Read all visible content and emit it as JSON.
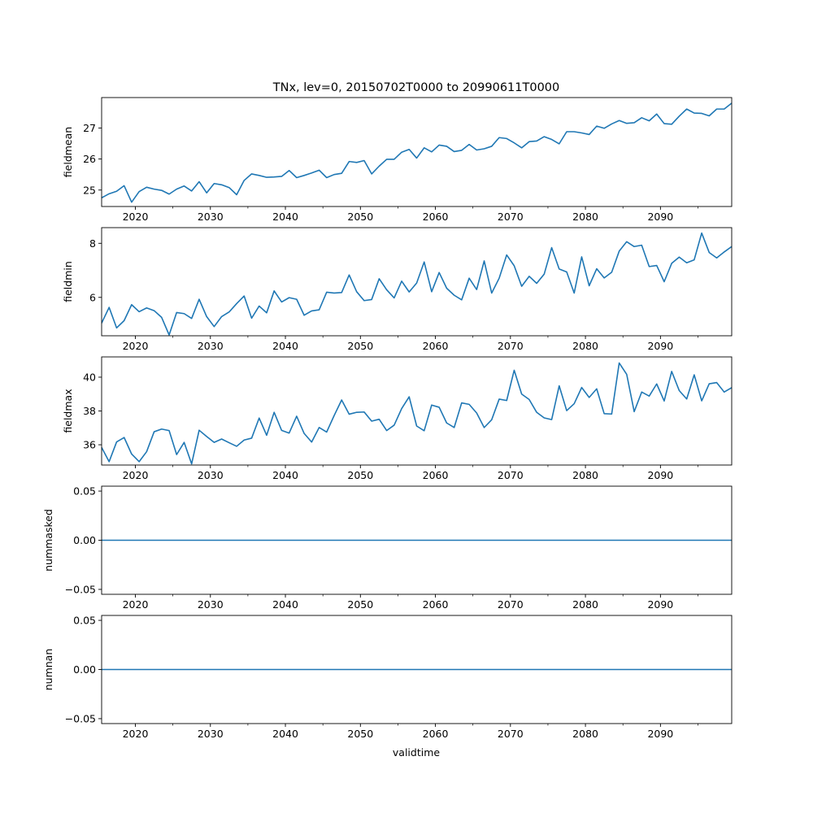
{
  "chart_data": {
    "title": "TNx, lev=0, 20150702T0000 to 20990611T0000",
    "xlabel": "validtime",
    "line_color": "#1f77b4",
    "x_start": 2015.5,
    "x_step": 1,
    "xlim": [
      2015.5,
      2099.5
    ],
    "x_ticks": [
      2020,
      2030,
      2040,
      2050,
      2060,
      2070,
      2080,
      2090
    ],
    "x_tick_labels": [
      "2020",
      "2030",
      "2040",
      "2050",
      "2060",
      "2070",
      "2080",
      "2090"
    ],
    "panels": [
      {
        "type": "line",
        "ylabel": "fieldmean",
        "ylim": [
          24.47,
          27.98
        ],
        "y_ticks": [
          25,
          26,
          27
        ],
        "y_tick_labels": [
          "25",
          "26",
          "27"
        ],
        "values": [
          24.75,
          24.88,
          24.96,
          25.14,
          24.61,
          24.95,
          25.09,
          25.03,
          24.99,
          24.87,
          25.03,
          25.13,
          24.97,
          25.27,
          24.91,
          25.21,
          25.17,
          25.08,
          24.85,
          25.31,
          25.52,
          25.47,
          25.41,
          25.42,
          25.44,
          25.63,
          25.4,
          25.47,
          25.55,
          25.64,
          25.4,
          25.5,
          25.54,
          25.92,
          25.89,
          25.95,
          25.52,
          25.77,
          25.99,
          25.99,
          26.22,
          26.31,
          26.03,
          26.36,
          26.23,
          26.45,
          26.41,
          26.24,
          26.28,
          26.47,
          26.29,
          26.33,
          26.41,
          26.69,
          26.66,
          26.52,
          26.36,
          26.56,
          26.58,
          26.72,
          26.63,
          26.49,
          26.88,
          26.88,
          26.84,
          26.79,
          27.06,
          26.99,
          27.13,
          27.24,
          27.15,
          27.17,
          27.33,
          27.23,
          27.45,
          27.14,
          27.12,
          27.38,
          27.61,
          27.48,
          27.47,
          27.39,
          27.61,
          27.61,
          27.8
        ]
      },
      {
        "type": "line",
        "ylabel": "fieldmin",
        "ylim": [
          4.58,
          8.58
        ],
        "y_ticks": [
          6,
          8
        ],
        "y_tick_labels": [
          "6",
          "8"
        ],
        "values": [
          5.05,
          5.63,
          4.87,
          5.14,
          5.73,
          5.47,
          5.61,
          5.51,
          5.26,
          4.61,
          5.44,
          5.4,
          5.22,
          5.93,
          5.29,
          4.92,
          5.29,
          5.46,
          5.77,
          6.05,
          5.23,
          5.68,
          5.43,
          6.24,
          5.83,
          5.99,
          5.93,
          5.34,
          5.5,
          5.54,
          6.19,
          6.16,
          6.18,
          6.83,
          6.21,
          5.88,
          5.92,
          6.69,
          6.28,
          5.98,
          6.6,
          6.2,
          6.53,
          7.31,
          6.21,
          6.92,
          6.34,
          6.08,
          5.91,
          6.71,
          6.29,
          7.35,
          6.16,
          6.71,
          7.57,
          7.17,
          6.41,
          6.78,
          6.52,
          6.86,
          7.84,
          7.05,
          6.94,
          6.16,
          7.5,
          6.43,
          7.06,
          6.72,
          6.93,
          7.71,
          8.06,
          7.88,
          7.93,
          7.14,
          7.18,
          6.58,
          7.26,
          7.49,
          7.28,
          7.39,
          8.38,
          7.66,
          7.46,
          7.68,
          7.88
        ]
      },
      {
        "type": "line",
        "ylabel": "fieldmax",
        "ylim": [
          34.8,
          41.2
        ],
        "y_ticks": [
          36,
          38,
          40
        ],
        "y_tick_labels": [
          "36",
          "38",
          "40"
        ],
        "values": [
          35.84,
          35.0,
          36.17,
          36.43,
          35.45,
          35.0,
          35.59,
          36.77,
          36.93,
          36.84,
          35.42,
          36.14,
          34.87,
          36.86,
          36.49,
          36.14,
          36.34,
          36.12,
          35.91,
          36.28,
          36.39,
          37.58,
          36.56,
          37.92,
          36.85,
          36.69,
          37.69,
          36.67,
          36.16,
          37.02,
          36.75,
          37.73,
          38.65,
          37.81,
          37.92,
          37.94,
          37.4,
          37.51,
          36.84,
          37.16,
          38.14,
          38.84,
          37.11,
          36.83,
          38.35,
          38.22,
          37.29,
          37.02,
          38.48,
          38.39,
          37.88,
          37.02,
          37.48,
          38.7,
          38.62,
          40.41,
          39.0,
          38.68,
          37.92,
          37.59,
          37.49,
          39.49,
          38.02,
          38.43,
          39.39,
          38.8,
          39.31,
          37.84,
          37.82,
          40.84,
          40.17,
          37.96,
          39.12,
          38.88,
          39.6,
          38.59,
          40.34,
          39.21,
          38.71,
          40.14,
          38.6,
          39.61,
          39.68,
          39.12,
          39.38
        ]
      },
      {
        "type": "line",
        "ylabel": "nummasked",
        "ylim": [
          -0.055,
          0.055
        ],
        "y_ticks": [
          -0.05,
          0.0,
          0.05
        ],
        "y_tick_labels": [
          "−0.05",
          "0.00",
          "0.05"
        ],
        "constant_value": 0
      },
      {
        "type": "line",
        "ylabel": "numnan",
        "ylim": [
          -0.055,
          0.055
        ],
        "y_ticks": [
          -0.05,
          0.0,
          0.05
        ],
        "y_tick_labels": [
          "−0.05",
          "0.00",
          "0.05"
        ],
        "constant_value": 0
      }
    ]
  }
}
